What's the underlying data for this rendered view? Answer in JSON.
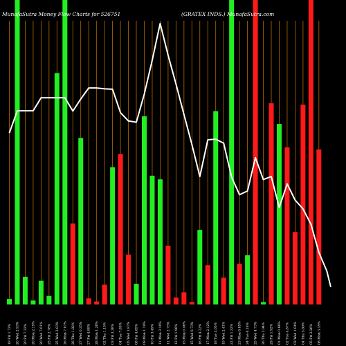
{
  "header": {
    "left": "MunafaSutra  Money Flow  Charts for 526751",
    "right": "(GRATEX   INDS.) MunafaSutra.com"
  },
  "colors": {
    "background": "#000000",
    "grid": "#b86a00",
    "inflow": "#22ee22",
    "outflow": "#ff1a1a",
    "price_line": "#ffffff"
  },
  "chart_data": {
    "type": "bar",
    "title": "",
    "xlabel": "",
    "ylabel": "",
    "ylim": [
      0,
      100
    ],
    "y_axis_labels": false,
    "grid": "vertical",
    "categories": [
      "18 Fri ...",
      "Bar 2",
      "Bar 3",
      "Bar 4",
      "Bar 5",
      "Bar 6",
      "Bar 7",
      "Bar 8",
      "Bar 9",
      "Bar 10",
      "Bar 11",
      "Bar 12",
      "Bar 13",
      "Bar 14",
      "Bar 15",
      "Bar 16",
      "Bar 17",
      "Bar 18",
      "Bar 19",
      "Bar 20",
      "Bar 21",
      "Bar 22",
      "Bar 23",
      "Bar 24",
      "Bar 25",
      "Bar 26",
      "Bar 27",
      "Bar 28",
      "Bar 29",
      "Bar 30",
      "Bar 31",
      "Bar 32",
      "Bar 33",
      "Bar 34",
      "Bar 35",
      "Bar 36",
      "Bar 37",
      "Bar 38",
      "Bar 39",
      "Bar 40"
    ],
    "bars": [
      {
        "value": 1.8,
        "flow": "in"
      },
      {
        "value": 100,
        "flow": "in"
      },
      {
        "value": 9.1,
        "flow": "in"
      },
      {
        "value": 1.3,
        "flow": "in"
      },
      {
        "value": 7.8,
        "flow": "in"
      },
      {
        "value": 2.8,
        "flow": "in"
      },
      {
        "value": 76.0,
        "flow": "in"
      },
      {
        "value": 100,
        "flow": "in"
      },
      {
        "value": 26.6,
        "flow": "out"
      },
      {
        "value": 54.7,
        "flow": "in"
      },
      {
        "value": 2.0,
        "flow": "out"
      },
      {
        "value": 1.0,
        "flow": "out"
      },
      {
        "value": 6.5,
        "flow": "out"
      },
      {
        "value": 45.1,
        "flow": "in"
      },
      {
        "value": 49.4,
        "flow": "out"
      },
      {
        "value": 16.4,
        "flow": "out"
      },
      {
        "value": 6.8,
        "flow": "in"
      },
      {
        "value": 61.8,
        "flow": "in"
      },
      {
        "value": 42.3,
        "flow": "in"
      },
      {
        "value": 41.1,
        "flow": "in"
      },
      {
        "value": 19.3,
        "flow": "out"
      },
      {
        "value": 2.3,
        "flow": "out"
      },
      {
        "value": 4.0,
        "flow": "out"
      },
      {
        "value": 0.8,
        "flow": "out"
      },
      {
        "value": 24.5,
        "flow": "in"
      },
      {
        "value": 12.9,
        "flow": "out"
      },
      {
        "value": 63.5,
        "flow": "in"
      },
      {
        "value": 8.8,
        "flow": "out"
      },
      {
        "value": 100,
        "flow": "in"
      },
      {
        "value": 13.4,
        "flow": "out"
      },
      {
        "value": 16.2,
        "flow": "in"
      },
      {
        "value": 100,
        "flow": "out"
      },
      {
        "value": 0.8,
        "flow": "in"
      },
      {
        "value": 66.1,
        "flow": "out"
      },
      {
        "value": 59.3,
        "flow": "in"
      },
      {
        "value": 51.6,
        "flow": "out"
      },
      {
        "value": 23.8,
        "flow": "out"
      },
      {
        "value": 65.6,
        "flow": "out"
      },
      {
        "value": 100,
        "flow": "out"
      },
      {
        "value": 50.9,
        "flow": "out"
      }
    ],
    "price_line": {
      "ylim": [
        0,
        100
      ],
      "points": [
        [
          0,
          73.5
        ],
        [
          1,
          80.7
        ],
        [
          2,
          80.7
        ],
        [
          3,
          80.7
        ],
        [
          4,
          84.9
        ],
        [
          5,
          84.9
        ],
        [
          6,
          84.9
        ],
        [
          7,
          84.9
        ],
        [
          8,
          80.6
        ],
        [
          9,
          84.5
        ],
        [
          10,
          88.1
        ],
        [
          11,
          88.1
        ],
        [
          12,
          87.8
        ],
        [
          13,
          87.7
        ],
        [
          14,
          80.1
        ],
        [
          15,
          77.4
        ],
        [
          16,
          77.0
        ],
        [
          17,
          86.1
        ],
        [
          18,
          97.1
        ],
        [
          19,
          109.0
        ],
        [
          20,
          98.7
        ],
        [
          21,
          89.3
        ],
        [
          22,
          79.5
        ],
        [
          23,
          69.8
        ],
        [
          24,
          59.4
        ],
        [
          25,
          71.3
        ],
        [
          26,
          71.5
        ],
        [
          27,
          70.2
        ],
        [
          28,
          59.2
        ],
        [
          29,
          53.5
        ],
        [
          30,
          54.7
        ],
        [
          31,
          65.5
        ],
        [
          32,
          58.4
        ],
        [
          33,
          59.4
        ],
        [
          34,
          49.4
        ],
        [
          35,
          57.0
        ],
        [
          36,
          51.8
        ],
        [
          37,
          48.9
        ],
        [
          38,
          43.9
        ],
        [
          39,
          34.8
        ],
        [
          40,
          28.8
        ],
        [
          40.5,
          23.6
        ]
      ]
    },
    "tick_labels": [
      "18 Fri 1.73%",
      "20 Wed 2.93%",
      "20 Fri 7.32%",
      "20 Mon 2.15%",
      "20 Wed 7.61%",
      "25 Fri 2.78%",
      "25 Wed 2.03%",
      "26 Mon 7.07%",
      "26 Thu 1.82%",
      "27 Wed 0.35%",
      "27 Fri 4.89%",
      "28 Mon 1.26%",
      "02 Thu 1.15%",
      "03 Fri 3.38%",
      "04 Tue 7.83%",
      "05 Wed 1.87%",
      "08 Fri 4.85%",
      "09 Mon 1.19%",
      "10 Fri 3.49%",
      "11 Mon 3.10%",
      "11 Wed 2.75%",
      "12 Fri 1.98%",
      "15 Mon 0.46%",
      "15 Wed 6.73%",
      "16 Fri 4.22%",
      "17 Mon 2.12%",
      "18 Tue 3.05%",
      "19 Wed 2.41%",
      "22 Fri 1.32%",
      "23 Mon 0.85%",
      "24 Tue 0.18%",
      "25 Wed 4.73%",
      "26 Thu 2.94%",
      "29 Fri 1.92%",
      "01 Mon 0.66%",
      "02 Tue 4.87%",
      "03 Wed 1.04%",
      "04 Thu 3.80%",
      "05 Fri 2.26%",
      "08 Mon 3.35%"
    ]
  }
}
